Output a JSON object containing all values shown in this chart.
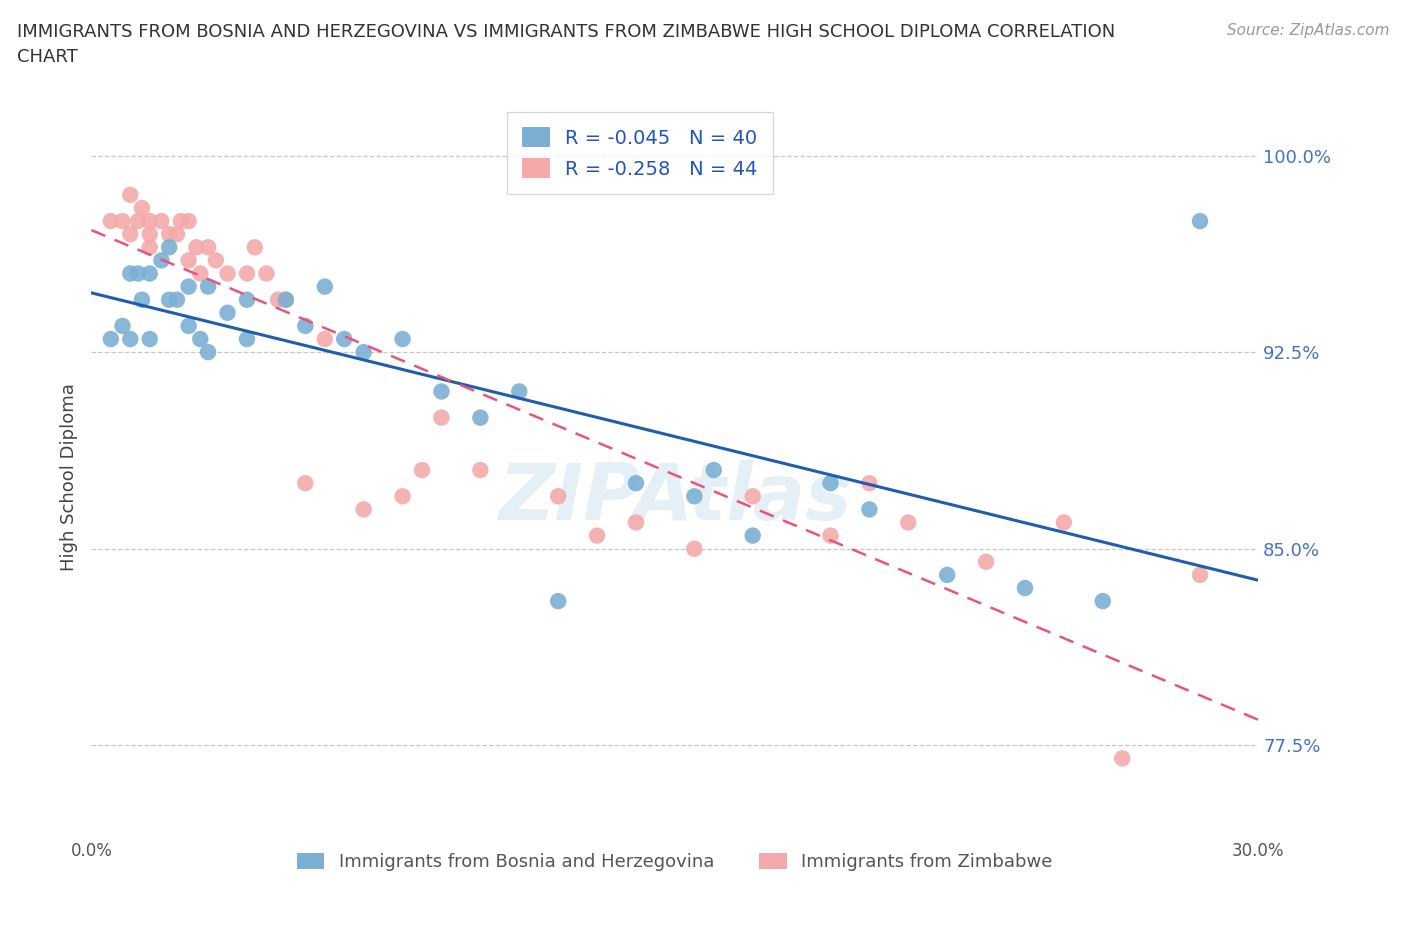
{
  "title": "IMMIGRANTS FROM BOSNIA AND HERZEGOVINA VS IMMIGRANTS FROM ZIMBABWE HIGH SCHOOL DIPLOMA CORRELATION\nCHART",
  "source": "Source: ZipAtlas.com",
  "ylabel": "High School Diploma",
  "xlim": [
    0.0,
    0.3
  ],
  "ylim": [
    0.74,
    1.015
  ],
  "yticks": [
    0.775,
    0.85,
    0.925,
    1.0
  ],
  "ytick_labels": [
    "77.5%",
    "85.0%",
    "92.5%",
    "100.0%"
  ],
  "xticks": [
    0.0,
    0.05,
    0.1,
    0.15,
    0.2,
    0.25,
    0.3
  ],
  "xtick_labels": [
    "0.0%",
    "",
    "",
    "",
    "",
    "",
    "30.0%"
  ],
  "legend_label1": "R = -0.045   N = 40",
  "legend_label2": "R = -0.258   N = 44",
  "bottom_legend1": "Immigrants from Bosnia and Herzegovina",
  "bottom_legend2": "Immigrants from Zimbabwe",
  "color_bosnia": "#7BAFD4",
  "color_zimbabwe": "#F4AAAA",
  "color_trend_bosnia": "#1F5DAD",
  "color_trend_zimbabwe": "#E8547A",
  "watermark": "ZIPAtlas",
  "bosnia_x": [
    0.005,
    0.008,
    0.01,
    0.01,
    0.012,
    0.013,
    0.015,
    0.015,
    0.018,
    0.02,
    0.02,
    0.022,
    0.025,
    0.025,
    0.028,
    0.03,
    0.03,
    0.035,
    0.04,
    0.04,
    0.05,
    0.055,
    0.06,
    0.065,
    0.07,
    0.08,
    0.09,
    0.1,
    0.11,
    0.12,
    0.14,
    0.155,
    0.16,
    0.17,
    0.19,
    0.2,
    0.22,
    0.24,
    0.26,
    0.285
  ],
  "bosnia_y": [
    0.93,
    0.935,
    0.955,
    0.93,
    0.955,
    0.945,
    0.955,
    0.93,
    0.96,
    0.965,
    0.945,
    0.945,
    0.95,
    0.935,
    0.93,
    0.95,
    0.925,
    0.94,
    0.945,
    0.93,
    0.945,
    0.935,
    0.95,
    0.93,
    0.925,
    0.93,
    0.91,
    0.9,
    0.91,
    0.83,
    0.875,
    0.87,
    0.88,
    0.855,
    0.875,
    0.865,
    0.84,
    0.835,
    0.83,
    0.975
  ],
  "zimbabwe_x": [
    0.005,
    0.008,
    0.01,
    0.01,
    0.012,
    0.013,
    0.015,
    0.015,
    0.015,
    0.018,
    0.02,
    0.022,
    0.023,
    0.025,
    0.025,
    0.027,
    0.028,
    0.03,
    0.032,
    0.035,
    0.04,
    0.042,
    0.045,
    0.048,
    0.05,
    0.055,
    0.06,
    0.07,
    0.08,
    0.085,
    0.09,
    0.1,
    0.12,
    0.13,
    0.14,
    0.155,
    0.17,
    0.19,
    0.2,
    0.21,
    0.23,
    0.25,
    0.265,
    0.285
  ],
  "zimbabwe_y": [
    0.975,
    0.975,
    0.985,
    0.97,
    0.975,
    0.98,
    0.975,
    0.965,
    0.97,
    0.975,
    0.97,
    0.97,
    0.975,
    0.975,
    0.96,
    0.965,
    0.955,
    0.965,
    0.96,
    0.955,
    0.955,
    0.965,
    0.955,
    0.945,
    0.945,
    0.875,
    0.93,
    0.865,
    0.87,
    0.88,
    0.9,
    0.88,
    0.87,
    0.855,
    0.86,
    0.85,
    0.87,
    0.855,
    0.875,
    0.86,
    0.845,
    0.86,
    0.77,
    0.84
  ]
}
